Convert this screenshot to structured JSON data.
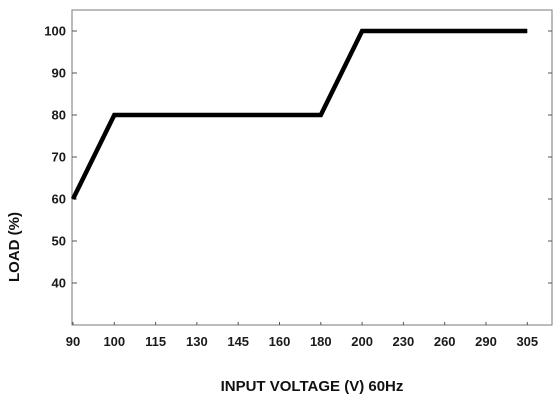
{
  "chart_data": {
    "type": "line",
    "title": "",
    "xlabel": "INPUT VOLTAGE (V) 60Hz",
    "ylabel": "LOAD (%)",
    "x_ticks": [
      "90",
      "100",
      "115",
      "130",
      "145",
      "160",
      "180",
      "200",
      "230",
      "260",
      "290",
      "305"
    ],
    "y_ticks": [
      "100",
      "90",
      "80",
      "70",
      "60",
      "50",
      "40"
    ],
    "y_tick_values": [
      100,
      90,
      80,
      70,
      60,
      50,
      40
    ],
    "ylim": [
      30,
      105
    ],
    "grid": false,
    "series": [
      {
        "color": "#000000",
        "points": [
          {
            "x": "90",
            "y": 60
          },
          {
            "x": "100",
            "y": 80
          },
          {
            "x": "180",
            "y": 80
          },
          {
            "x": "200",
            "y": 100
          },
          {
            "x": "305",
            "y": 100
          }
        ]
      }
    ]
  }
}
